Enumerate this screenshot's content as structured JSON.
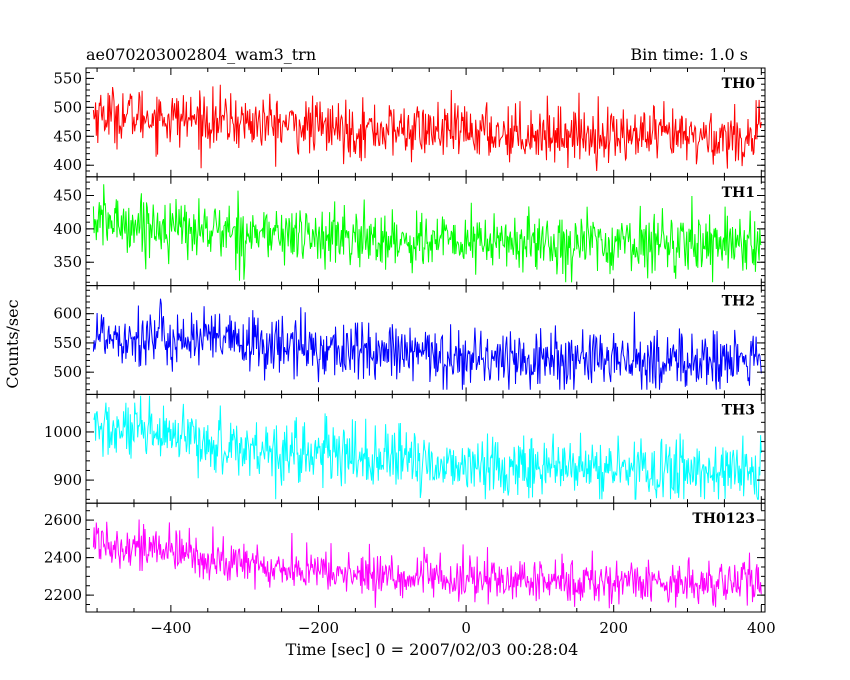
{
  "header": {
    "left_title": "ae070203002804_wam3_trn",
    "right_title": "Bin time: 1.0 s"
  },
  "chart_data": {
    "type": "line",
    "xlabel": "Time [sec] 0 = 2007/02/03 00:28:04",
    "ylabel": "Counts/sec",
    "xlim": [
      -515,
      405
    ],
    "x_ticks": [
      -400,
      -200,
      0,
      200,
      400
    ],
    "x_minor_step": 50,
    "data_x_range": [
      -505,
      400
    ],
    "panels": [
      {
        "name": "TH0",
        "color": "#ff0000",
        "ylim": [
          380,
          568
        ],
        "y_ticks": [
          400,
          450,
          500,
          550
        ],
        "y_minor_step": 10,
        "trend": [
          [
            -505,
            490
          ],
          [
            -350,
            478
          ],
          [
            -150,
            462
          ],
          [
            0,
            458
          ],
          [
            200,
            452
          ],
          [
            300,
            448
          ],
          [
            400,
            448
          ]
        ],
        "noise_sd": 24,
        "spread_range": [
          390,
          560
        ]
      },
      {
        "name": "TH1",
        "color": "#00ff00",
        "ylim": [
          315,
          478
        ],
        "y_ticks": [
          350,
          400,
          450
        ],
        "y_minor_step": 10,
        "trend": [
          [
            -505,
            412
          ],
          [
            -350,
            398
          ],
          [
            -150,
            385
          ],
          [
            0,
            380
          ],
          [
            200,
            378
          ],
          [
            300,
            380
          ],
          [
            400,
            382
          ]
        ],
        "noise_sd": 22,
        "spread_range": [
          320,
          475
        ]
      },
      {
        "name": "TH2",
        "color": "#0000ff",
        "ylim": [
          462,
          648
        ],
        "y_ticks": [
          500,
          550,
          600
        ],
        "y_minor_step": 10,
        "trend": [
          [
            -505,
            565
          ],
          [
            -350,
            555
          ],
          [
            -150,
            535
          ],
          [
            0,
            525
          ],
          [
            200,
            520
          ],
          [
            300,
            518
          ],
          [
            400,
            520
          ]
        ],
        "noise_sd": 26,
        "spread_range": [
          470,
          640
        ]
      },
      {
        "name": "TH3",
        "color": "#00ffff",
        "ylim": [
          852,
          1078
        ],
        "y_ticks": [
          900,
          1000
        ],
        "y_minor_step": 20,
        "trend": [
          [
            -505,
            1010
          ],
          [
            -350,
            975
          ],
          [
            -150,
            948
          ],
          [
            0,
            930
          ],
          [
            200,
            922
          ],
          [
            300,
            920
          ],
          [
            400,
            918
          ]
        ],
        "noise_sd": 32,
        "spread_range": [
          860,
          1075
        ]
      },
      {
        "name": "TH0123",
        "color": "#ff00ff",
        "ylim": [
          2110,
          2690
        ],
        "y_ticks": [
          2200,
          2400,
          2600
        ],
        "y_minor_step": 50,
        "trend": [
          [
            -505,
            2500
          ],
          [
            -400,
            2430
          ],
          [
            -300,
            2360
          ],
          [
            -150,
            2310
          ],
          [
            0,
            2280
          ],
          [
            200,
            2270
          ],
          [
            300,
            2270
          ],
          [
            400,
            2265
          ]
        ],
        "noise_sd": 60,
        "spread_range": [
          2130,
          2680
        ]
      }
    ]
  }
}
